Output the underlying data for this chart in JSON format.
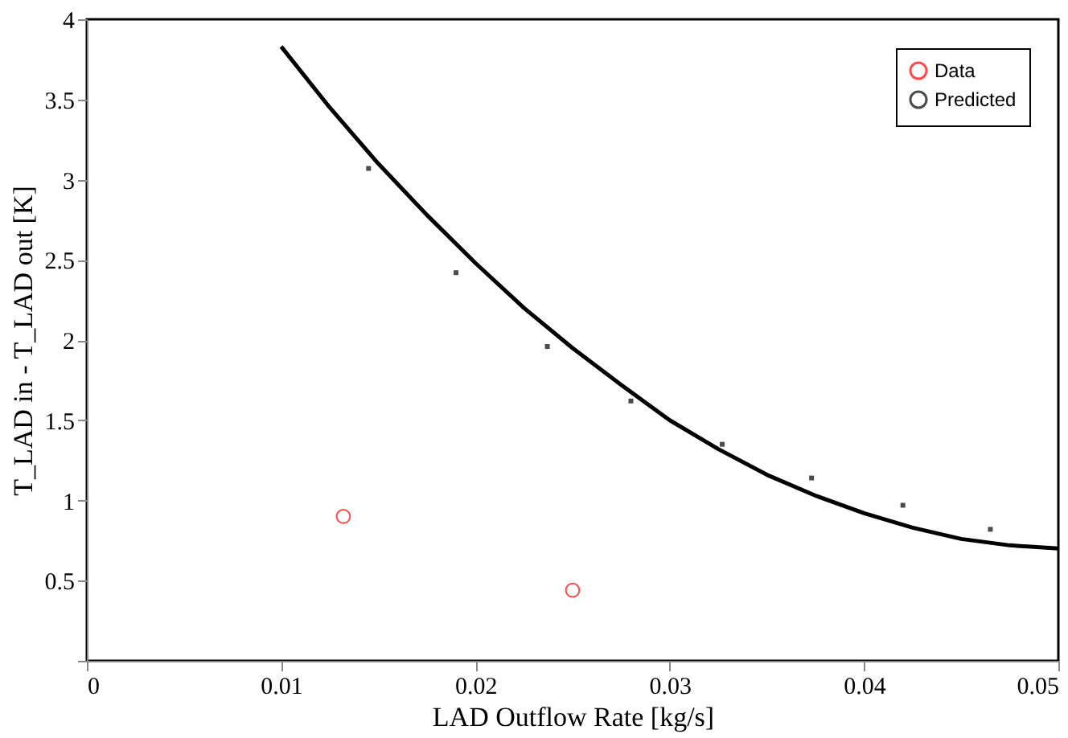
{
  "chart_data": {
    "type": "scatter",
    "xlabel": "LAD Outflow Rate [kg/s]",
    "ylabel": "T_LAD in - T_LAD out [K]",
    "xlim": [
      0,
      0.05
    ],
    "xticks": [
      0,
      0.01,
      0.02,
      0.03,
      0.04,
      0.05
    ],
    "ylim": [
      0,
      4
    ],
    "yticks": [
      {
        "value": 0,
        "label": null
      },
      0.5,
      1,
      1.5,
      2,
      2.5,
      3,
      3.5,
      4
    ],
    "grid": false,
    "legend": "top right",
    "series": [
      {
        "name": "Data",
        "marker": "circle",
        "color": "#ff0000",
        "x": [
          0.0132,
          0.025
        ],
        "values": [
          0.9,
          0.44
        ]
      },
      {
        "name": "Predicted",
        "type": "line",
        "line_style": "solid",
        "color": "#000000",
        "x": [
          0.01,
          0.0125,
          0.015,
          0.0175,
          0.02,
          0.0225,
          0.025,
          0.0275,
          0.03,
          0.0325,
          0.035,
          0.0375,
          0.04,
          0.0425,
          0.045,
          0.0475,
          0.05
        ],
        "values": [
          3.83,
          3.45,
          3.1,
          2.78,
          2.48,
          2.2,
          1.95,
          1.72,
          1.5,
          1.32,
          1.16,
          1.03,
          0.92,
          0.83,
          0.76,
          0.72,
          0.7
        ]
      },
      {
        "marker": "square",
        "color": "#000000",
        "x": [
          0.0145,
          0.019,
          0.0237,
          0.028,
          0.0327,
          0.0373,
          0.042,
          0.0465
        ],
        "values": [
          3.07,
          2.42,
          1.96,
          1.62,
          1.35,
          1.14,
          0.97,
          0.82
        ]
      }
    ]
  }
}
